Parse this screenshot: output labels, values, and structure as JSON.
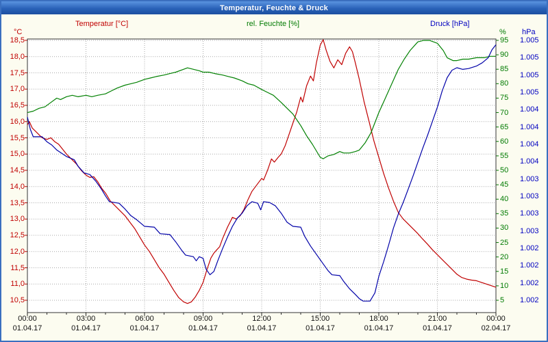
{
  "window": {
    "title": "Temperatur, Feuchte & Druck"
  },
  "chart_data": {
    "type": "line",
    "title": "Temperatur, Feuchte & Druck",
    "grid": true,
    "legend_position": "top",
    "legend": {
      "temperature": "Temperatur [°C]",
      "humidity": "rel. Feuchte [%]",
      "pressure": "Druck [hPa]"
    },
    "x_range": [
      0,
      24
    ],
    "x_tick_labels": [
      "00:00",
      "03:00",
      "06:00",
      "09:00",
      "12:00",
      "15:00",
      "18:00",
      "21:00",
      "00:00"
    ],
    "x_date_labels": [
      "01.04.17",
      "01.04.17",
      "01.04.17",
      "01.04.17",
      "01.04.17",
      "01.04.17",
      "01.04.17",
      "01.04.17",
      "02.04.17"
    ],
    "axes": {
      "temp": {
        "unit": "°C",
        "color": "#c00000",
        "side": "left",
        "top": 18.54,
        "bottom": 10.12,
        "tick_labels": [
          "18,5",
          "18,0",
          "17,5",
          "17,0",
          "16,5",
          "16,0",
          "15,5",
          "15,0",
          "14,5",
          "14,0",
          "13,5",
          "13,0",
          "12,5",
          "12,0",
          "11,5",
          "11,0",
          "10,5"
        ]
      },
      "hum": {
        "unit": "%",
        "color": "#007a00",
        "side": "right",
        "top": 95.5,
        "bottom": 0.7,
        "tick_labels": [
          "95",
          "90",
          "85",
          "80",
          "75",
          "70",
          "65",
          "60",
          "55",
          "50",
          "45",
          "40",
          "35",
          "30",
          "25",
          "20",
          "15",
          "10",
          "5"
        ]
      },
      "press": {
        "unit": "hPa",
        "color": "#0000c0",
        "side": "right-outer",
        "top": 1005.25,
        "bottom": 1001.92,
        "tick_labels": [
          "1.005",
          "1.005",
          "1.005",
          "1.005",
          "1.004",
          "1.004",
          "1.004",
          "1.004",
          "1.003",
          "1.003",
          "1.003",
          "1.003",
          "1.002",
          "1.002",
          "1.002",
          "1.002"
        ]
      }
    },
    "series": [
      {
        "name": "Temperatur",
        "axis": "temp",
        "color": "#c00000",
        "points": [
          [
            0,
            15.9
          ],
          [
            0.1,
            16.0
          ],
          [
            0.25,
            15.8
          ],
          [
            0.5,
            15.65
          ],
          [
            0.75,
            15.5
          ],
          [
            1.0,
            15.45
          ],
          [
            1.2,
            15.5
          ],
          [
            1.4,
            15.38
          ],
          [
            1.6,
            15.3
          ],
          [
            1.8,
            15.15
          ],
          [
            2.0,
            15.0
          ],
          [
            2.25,
            14.85
          ],
          [
            2.5,
            14.7
          ],
          [
            2.75,
            14.5
          ],
          [
            3.0,
            14.35
          ],
          [
            3.2,
            14.28
          ],
          [
            3.4,
            14.3
          ],
          [
            3.6,
            14.15
          ],
          [
            3.8,
            13.95
          ],
          [
            4.0,
            13.8
          ],
          [
            4.25,
            13.55
          ],
          [
            4.5,
            13.4
          ],
          [
            4.75,
            13.25
          ],
          [
            5.0,
            13.1
          ],
          [
            5.25,
            12.9
          ],
          [
            5.5,
            12.7
          ],
          [
            5.75,
            12.45
          ],
          [
            6.0,
            12.2
          ],
          [
            6.25,
            12.0
          ],
          [
            6.5,
            11.75
          ],
          [
            6.75,
            11.5
          ],
          [
            7.0,
            11.3
          ],
          [
            7.25,
            11.05
          ],
          [
            7.5,
            10.8
          ],
          [
            7.75,
            10.58
          ],
          [
            8.0,
            10.45
          ],
          [
            8.2,
            10.4
          ],
          [
            8.4,
            10.45
          ],
          [
            8.6,
            10.6
          ],
          [
            8.8,
            10.8
          ],
          [
            9.0,
            11.05
          ],
          [
            9.2,
            11.45
          ],
          [
            9.4,
            11.8
          ],
          [
            9.55,
            11.95
          ],
          [
            9.7,
            12.05
          ],
          [
            9.85,
            12.15
          ],
          [
            10.0,
            12.4
          ],
          [
            10.25,
            12.75
          ],
          [
            10.5,
            13.05
          ],
          [
            10.7,
            13.0
          ],
          [
            10.9,
            13.1
          ],
          [
            11.1,
            13.3
          ],
          [
            11.3,
            13.6
          ],
          [
            11.5,
            13.85
          ],
          [
            11.75,
            14.05
          ],
          [
            12.0,
            14.25
          ],
          [
            12.1,
            14.2
          ],
          [
            12.3,
            14.5
          ],
          [
            12.5,
            14.85
          ],
          [
            12.65,
            14.75
          ],
          [
            12.85,
            14.9
          ],
          [
            13.0,
            15.0
          ],
          [
            13.2,
            15.25
          ],
          [
            13.4,
            15.6
          ],
          [
            13.6,
            15.95
          ],
          [
            13.8,
            16.3
          ],
          [
            14.0,
            16.75
          ],
          [
            14.1,
            16.6
          ],
          [
            14.3,
            17.1
          ],
          [
            14.5,
            17.4
          ],
          [
            14.65,
            17.25
          ],
          [
            14.8,
            17.8
          ],
          [
            15.0,
            18.35
          ],
          [
            15.15,
            18.52
          ],
          [
            15.3,
            18.2
          ],
          [
            15.5,
            17.85
          ],
          [
            15.7,
            17.65
          ],
          [
            15.9,
            17.9
          ],
          [
            16.1,
            17.75
          ],
          [
            16.3,
            18.1
          ],
          [
            16.5,
            18.3
          ],
          [
            16.65,
            18.15
          ],
          [
            16.8,
            17.8
          ],
          [
            17.0,
            17.3
          ],
          [
            17.25,
            16.6
          ],
          [
            17.5,
            16.0
          ],
          [
            17.75,
            15.4
          ],
          [
            18.0,
            14.9
          ],
          [
            18.25,
            14.4
          ],
          [
            18.5,
            13.95
          ],
          [
            18.75,
            13.55
          ],
          [
            19.0,
            13.2
          ],
          [
            19.25,
            13.0
          ],
          [
            19.5,
            12.85
          ],
          [
            19.75,
            12.7
          ],
          [
            20.0,
            12.55
          ],
          [
            20.25,
            12.38
          ],
          [
            20.5,
            12.22
          ],
          [
            20.75,
            12.05
          ],
          [
            21.0,
            11.9
          ],
          [
            21.25,
            11.75
          ],
          [
            21.5,
            11.6
          ],
          [
            21.75,
            11.45
          ],
          [
            22.0,
            11.3
          ],
          [
            22.25,
            11.2
          ],
          [
            22.5,
            11.15
          ],
          [
            22.75,
            11.12
          ],
          [
            23.0,
            11.1
          ],
          [
            23.25,
            11.05
          ],
          [
            23.5,
            11.0
          ],
          [
            23.75,
            10.95
          ],
          [
            24.0,
            10.9
          ]
        ]
      },
      {
        "name": "rel. Feuchte",
        "axis": "hum",
        "color": "#008000",
        "points": [
          [
            0,
            70
          ],
          [
            0.3,
            70.5
          ],
          [
            0.6,
            71.5
          ],
          [
            0.9,
            72
          ],
          [
            1.2,
            73.5
          ],
          [
            1.5,
            75
          ],
          [
            1.7,
            74.5
          ],
          [
            2.0,
            75.5
          ],
          [
            2.3,
            76
          ],
          [
            2.6,
            75.5
          ],
          [
            3.0,
            76
          ],
          [
            3.3,
            75.5
          ],
          [
            3.6,
            76
          ],
          [
            4.0,
            76.5
          ],
          [
            4.3,
            77.5
          ],
          [
            4.6,
            78.5
          ],
          [
            5.0,
            79.5
          ],
          [
            5.3,
            80
          ],
          [
            5.6,
            80.5
          ],
          [
            6.0,
            81.5
          ],
          [
            6.3,
            82
          ],
          [
            6.6,
            82.5
          ],
          [
            7.0,
            83
          ],
          [
            7.3,
            83.5
          ],
          [
            7.6,
            84
          ],
          [
            8.0,
            85
          ],
          [
            8.2,
            85.5
          ],
          [
            8.5,
            85
          ],
          [
            8.8,
            84.5
          ],
          [
            9.0,
            84
          ],
          [
            9.3,
            84
          ],
          [
            9.6,
            83.5
          ],
          [
            10.0,
            83
          ],
          [
            10.3,
            82.5
          ],
          [
            10.6,
            82
          ],
          [
            11.0,
            81
          ],
          [
            11.3,
            80
          ],
          [
            11.6,
            79.5
          ],
          [
            12.0,
            78
          ],
          [
            12.3,
            77
          ],
          [
            12.6,
            76
          ],
          [
            13.0,
            73.5
          ],
          [
            13.3,
            71.5
          ],
          [
            13.6,
            69.5
          ],
          [
            14.0,
            65.5
          ],
          [
            14.3,
            62
          ],
          [
            14.6,
            59
          ],
          [
            15.0,
            54.5
          ],
          [
            15.15,
            54
          ],
          [
            15.4,
            55
          ],
          [
            15.7,
            55.5
          ],
          [
            16.0,
            56.5
          ],
          [
            16.2,
            56
          ],
          [
            16.5,
            56
          ],
          [
            16.8,
            56.5
          ],
          [
            17.0,
            57
          ],
          [
            17.3,
            59.5
          ],
          [
            17.6,
            63
          ],
          [
            18.0,
            70
          ],
          [
            18.3,
            74.5
          ],
          [
            18.6,
            79
          ],
          [
            19.0,
            85
          ],
          [
            19.3,
            88.5
          ],
          [
            19.6,
            91.5
          ],
          [
            20.0,
            94.5
          ],
          [
            20.3,
            95
          ],
          [
            20.6,
            95
          ],
          [
            21.0,
            94
          ],
          [
            21.3,
            91.5
          ],
          [
            21.5,
            89
          ],
          [
            21.8,
            88
          ],
          [
            22.0,
            88
          ],
          [
            22.3,
            88.5
          ],
          [
            22.6,
            88.5
          ],
          [
            23.0,
            89
          ],
          [
            23.4,
            89
          ],
          [
            23.7,
            89.5
          ],
          [
            24.0,
            89.5
          ]
        ]
      },
      {
        "name": "Druck",
        "axis": "press",
        "color": "#0000a8",
        "points": [
          [
            0,
            1004.3
          ],
          [
            0.15,
            1004.15
          ],
          [
            0.3,
            1004.06
          ],
          [
            0.75,
            1004.06
          ],
          [
            1.0,
            1004.0
          ],
          [
            1.25,
            1003.96
          ],
          [
            1.5,
            1003.9
          ],
          [
            2.0,
            1003.82
          ],
          [
            2.4,
            1003.78
          ],
          [
            2.6,
            1003.7
          ],
          [
            2.9,
            1003.62
          ],
          [
            3.2,
            1003.6
          ],
          [
            3.5,
            1003.52
          ],
          [
            3.8,
            1003.42
          ],
          [
            4.0,
            1003.34
          ],
          [
            4.2,
            1003.27
          ],
          [
            4.7,
            1003.25
          ],
          [
            5.0,
            1003.18
          ],
          [
            5.3,
            1003.1
          ],
          [
            5.6,
            1003.05
          ],
          [
            6.0,
            1002.97
          ],
          [
            6.5,
            1002.96
          ],
          [
            6.8,
            1002.88
          ],
          [
            7.3,
            1002.87
          ],
          [
            7.6,
            1002.78
          ],
          [
            7.9,
            1002.68
          ],
          [
            8.1,
            1002.62
          ],
          [
            8.5,
            1002.6
          ],
          [
            8.65,
            1002.55
          ],
          [
            8.8,
            1002.6
          ],
          [
            9.0,
            1002.58
          ],
          [
            9.15,
            1002.45
          ],
          [
            9.35,
            1002.38
          ],
          [
            9.55,
            1002.42
          ],
          [
            9.75,
            1002.55
          ],
          [
            10.0,
            1002.7
          ],
          [
            10.25,
            1002.84
          ],
          [
            10.5,
            1002.97
          ],
          [
            10.75,
            1003.07
          ],
          [
            11.0,
            1003.13
          ],
          [
            11.25,
            1003.22
          ],
          [
            11.5,
            1003.27
          ],
          [
            11.8,
            1003.25
          ],
          [
            11.95,
            1003.17
          ],
          [
            12.1,
            1003.27
          ],
          [
            12.4,
            1003.26
          ],
          [
            12.7,
            1003.22
          ],
          [
            13.0,
            1003.13
          ],
          [
            13.3,
            1003.02
          ],
          [
            13.6,
            1002.97
          ],
          [
            14.0,
            1002.96
          ],
          [
            14.2,
            1002.85
          ],
          [
            14.5,
            1002.73
          ],
          [
            14.8,
            1002.63
          ],
          [
            15.1,
            1002.53
          ],
          [
            15.4,
            1002.43
          ],
          [
            15.6,
            1002.38
          ],
          [
            16.0,
            1002.37
          ],
          [
            16.2,
            1002.3
          ],
          [
            16.5,
            1002.21
          ],
          [
            16.8,
            1002.14
          ],
          [
            17.0,
            1002.09
          ],
          [
            17.2,
            1002.06
          ],
          [
            17.55,
            1002.06
          ],
          [
            17.8,
            1002.16
          ],
          [
            18.0,
            1002.36
          ],
          [
            18.25,
            1002.54
          ],
          [
            18.5,
            1002.74
          ],
          [
            18.75,
            1002.95
          ],
          [
            19.0,
            1003.12
          ],
          [
            19.25,
            1003.26
          ],
          [
            19.5,
            1003.42
          ],
          [
            19.75,
            1003.58
          ],
          [
            20.0,
            1003.75
          ],
          [
            20.25,
            1003.92
          ],
          [
            20.5,
            1004.08
          ],
          [
            20.75,
            1004.25
          ],
          [
            21.0,
            1004.42
          ],
          [
            21.25,
            1004.62
          ],
          [
            21.5,
            1004.78
          ],
          [
            21.75,
            1004.87
          ],
          [
            22.0,
            1004.9
          ],
          [
            22.3,
            1004.88
          ],
          [
            22.6,
            1004.89
          ],
          [
            23.0,
            1004.92
          ],
          [
            23.3,
            1004.96
          ],
          [
            23.6,
            1005.02
          ],
          [
            23.8,
            1005.12
          ],
          [
            24.0,
            1005.18
          ]
        ]
      }
    ]
  }
}
